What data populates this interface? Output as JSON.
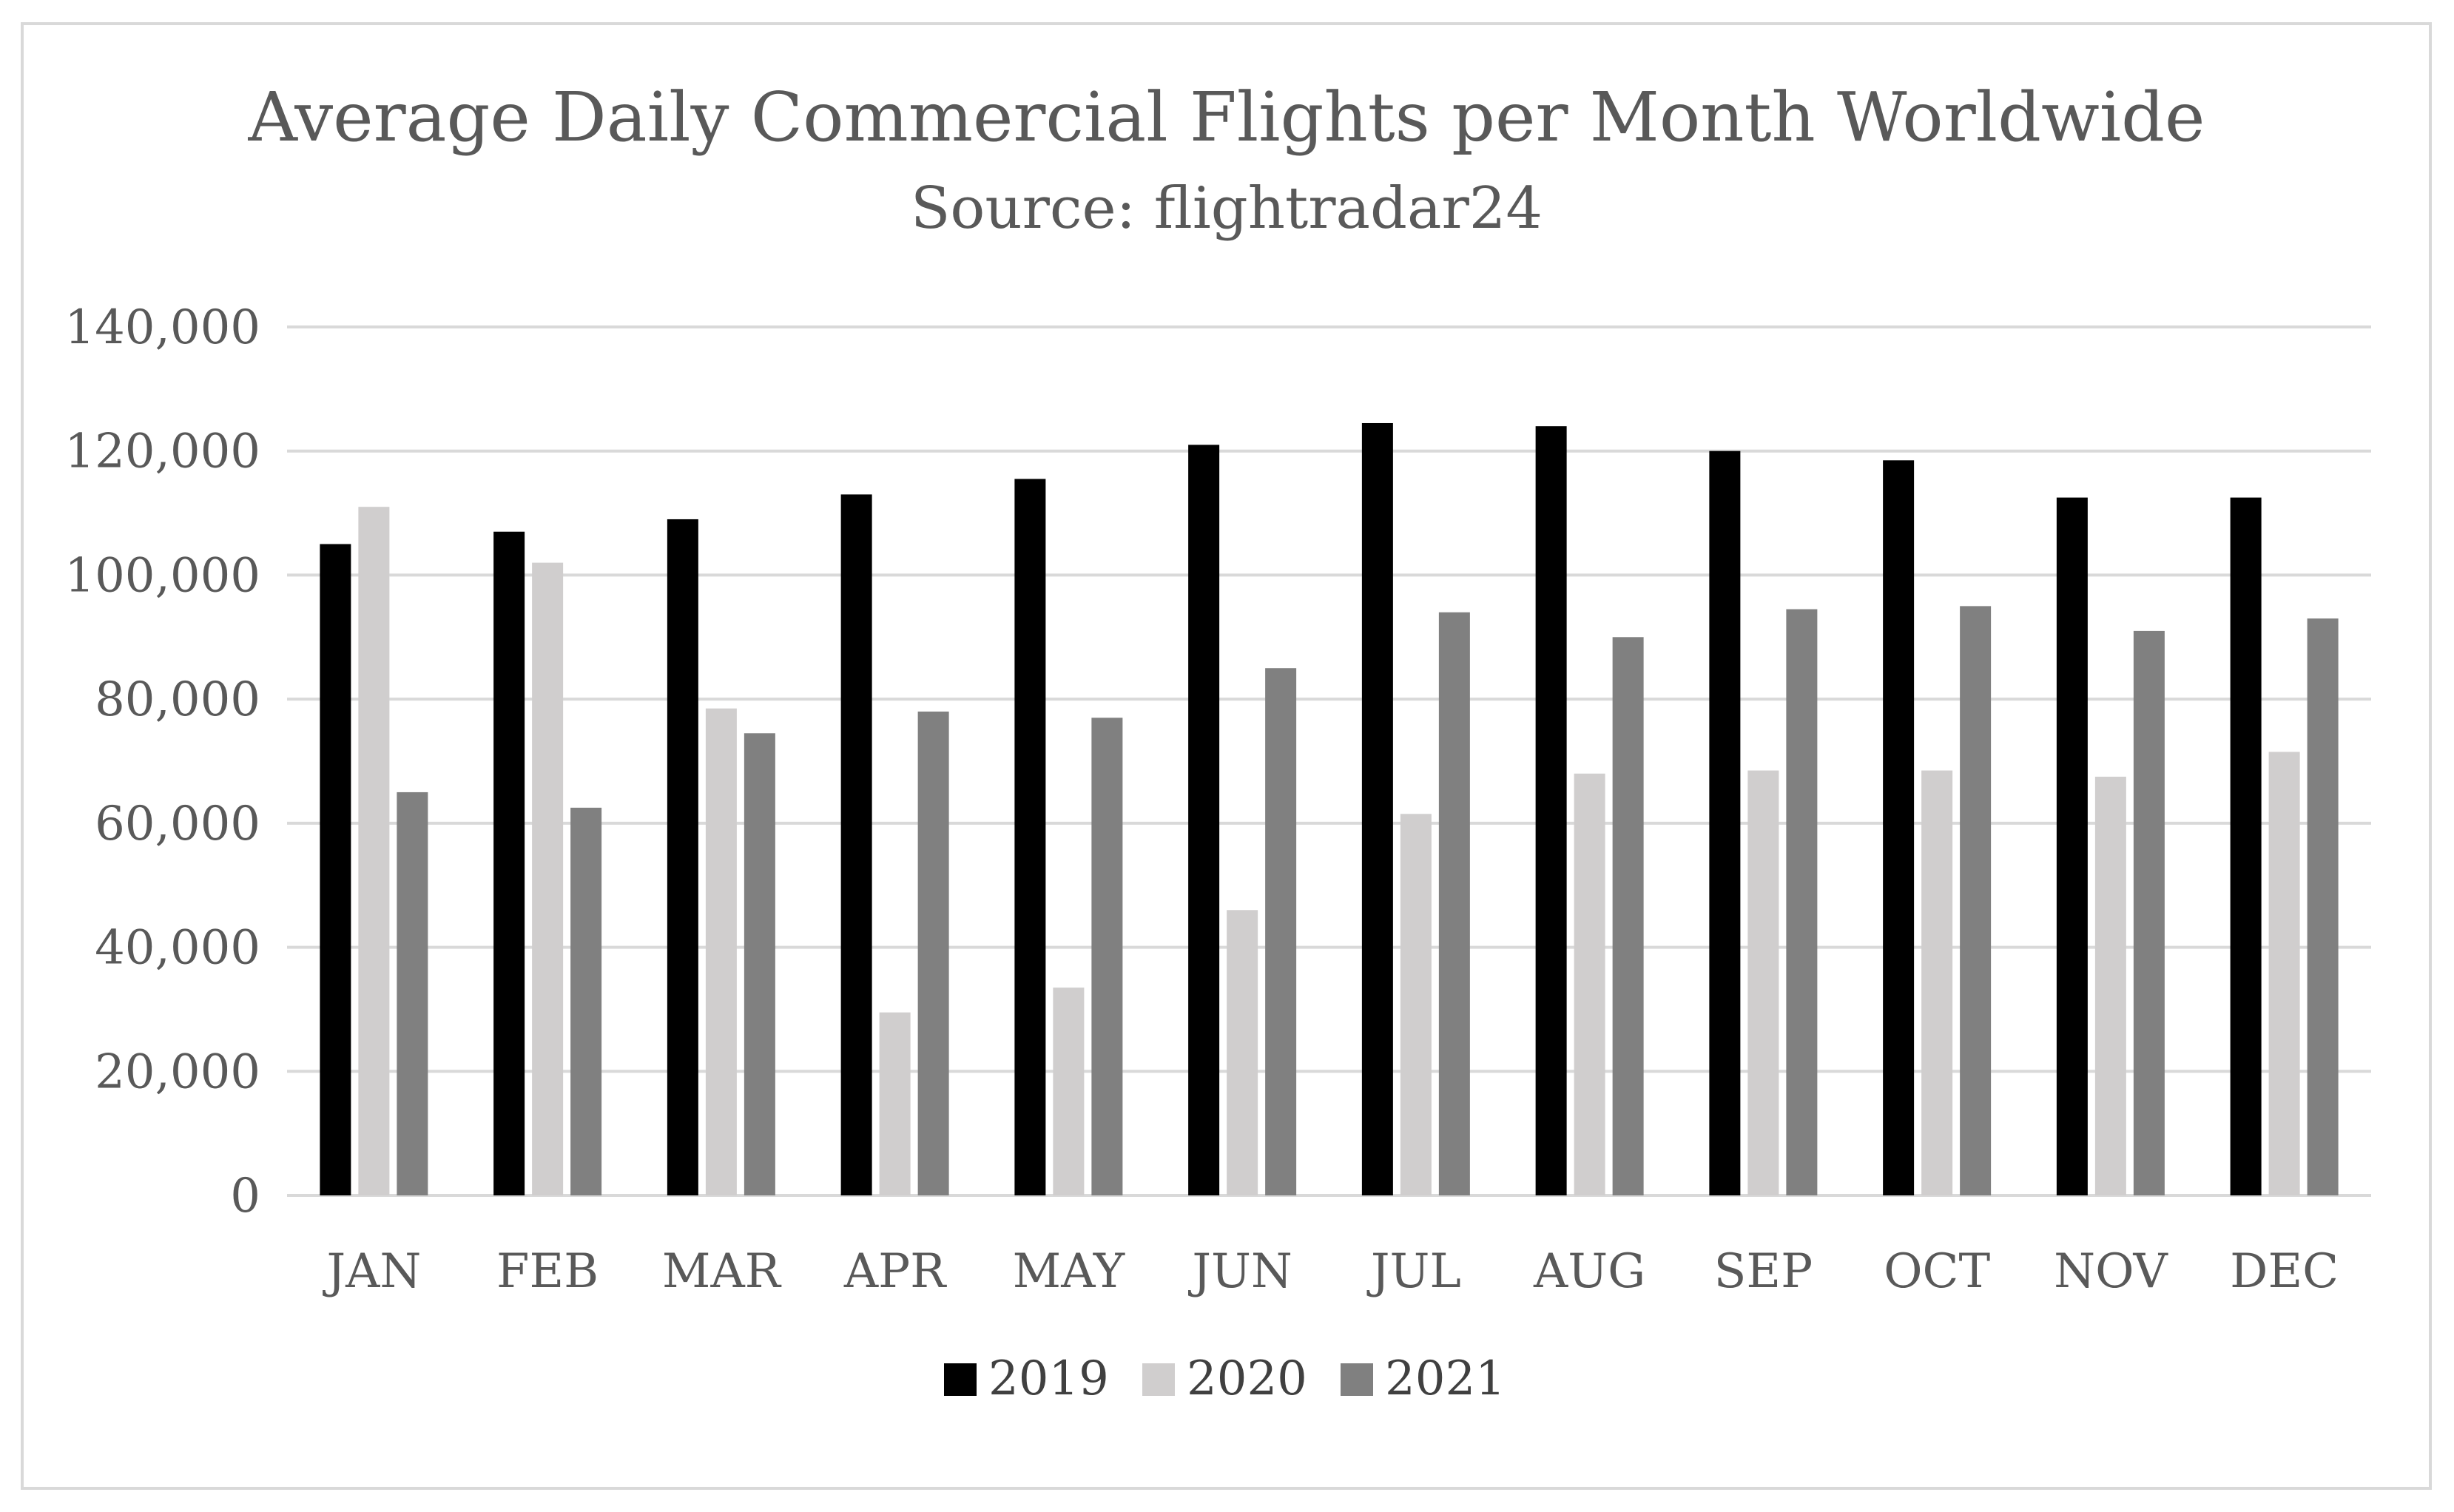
{
  "chart_data": {
    "type": "bar",
    "title": "Average Daily Commercial Flights per Month Worldwide",
    "subtitle": "Source: flightradar24",
    "xlabel": "",
    "ylabel": "",
    "ylim": [
      0,
      140000
    ],
    "yticks": [
      "0",
      "20,000",
      "40,000",
      "60,000",
      "80,000",
      "100,000",
      "120,000",
      "140,000"
    ],
    "ytick_values": [
      0,
      20000,
      40000,
      60000,
      80000,
      100000,
      120000,
      140000
    ],
    "grid": true,
    "legend_position": "bottom",
    "categories": [
      "JAN",
      "FEB",
      "MAR",
      "APR",
      "MAY",
      "JUN",
      "JUL",
      "AUG",
      "SEP",
      "OCT",
      "NOV",
      "DEC"
    ],
    "series": [
      {
        "name": "2019",
        "color": "#000000",
        "values": [
          105000,
          107000,
          109000,
          113000,
          115500,
          121000,
          124500,
          124000,
          120000,
          118500,
          112500,
          112500
        ]
      },
      {
        "name": "2020",
        "color": "#d0cece",
        "values": [
          111000,
          102000,
          78500,
          29500,
          33500,
          46000,
          61500,
          68000,
          68500,
          68500,
          67500,
          71500
        ]
      },
      {
        "name": "2021",
        "color": "#808080",
        "values": [
          65000,
          62500,
          74500,
          78000,
          77000,
          85000,
          94000,
          90000,
          94500,
          95000,
          91000,
          93000
        ]
      }
    ]
  }
}
